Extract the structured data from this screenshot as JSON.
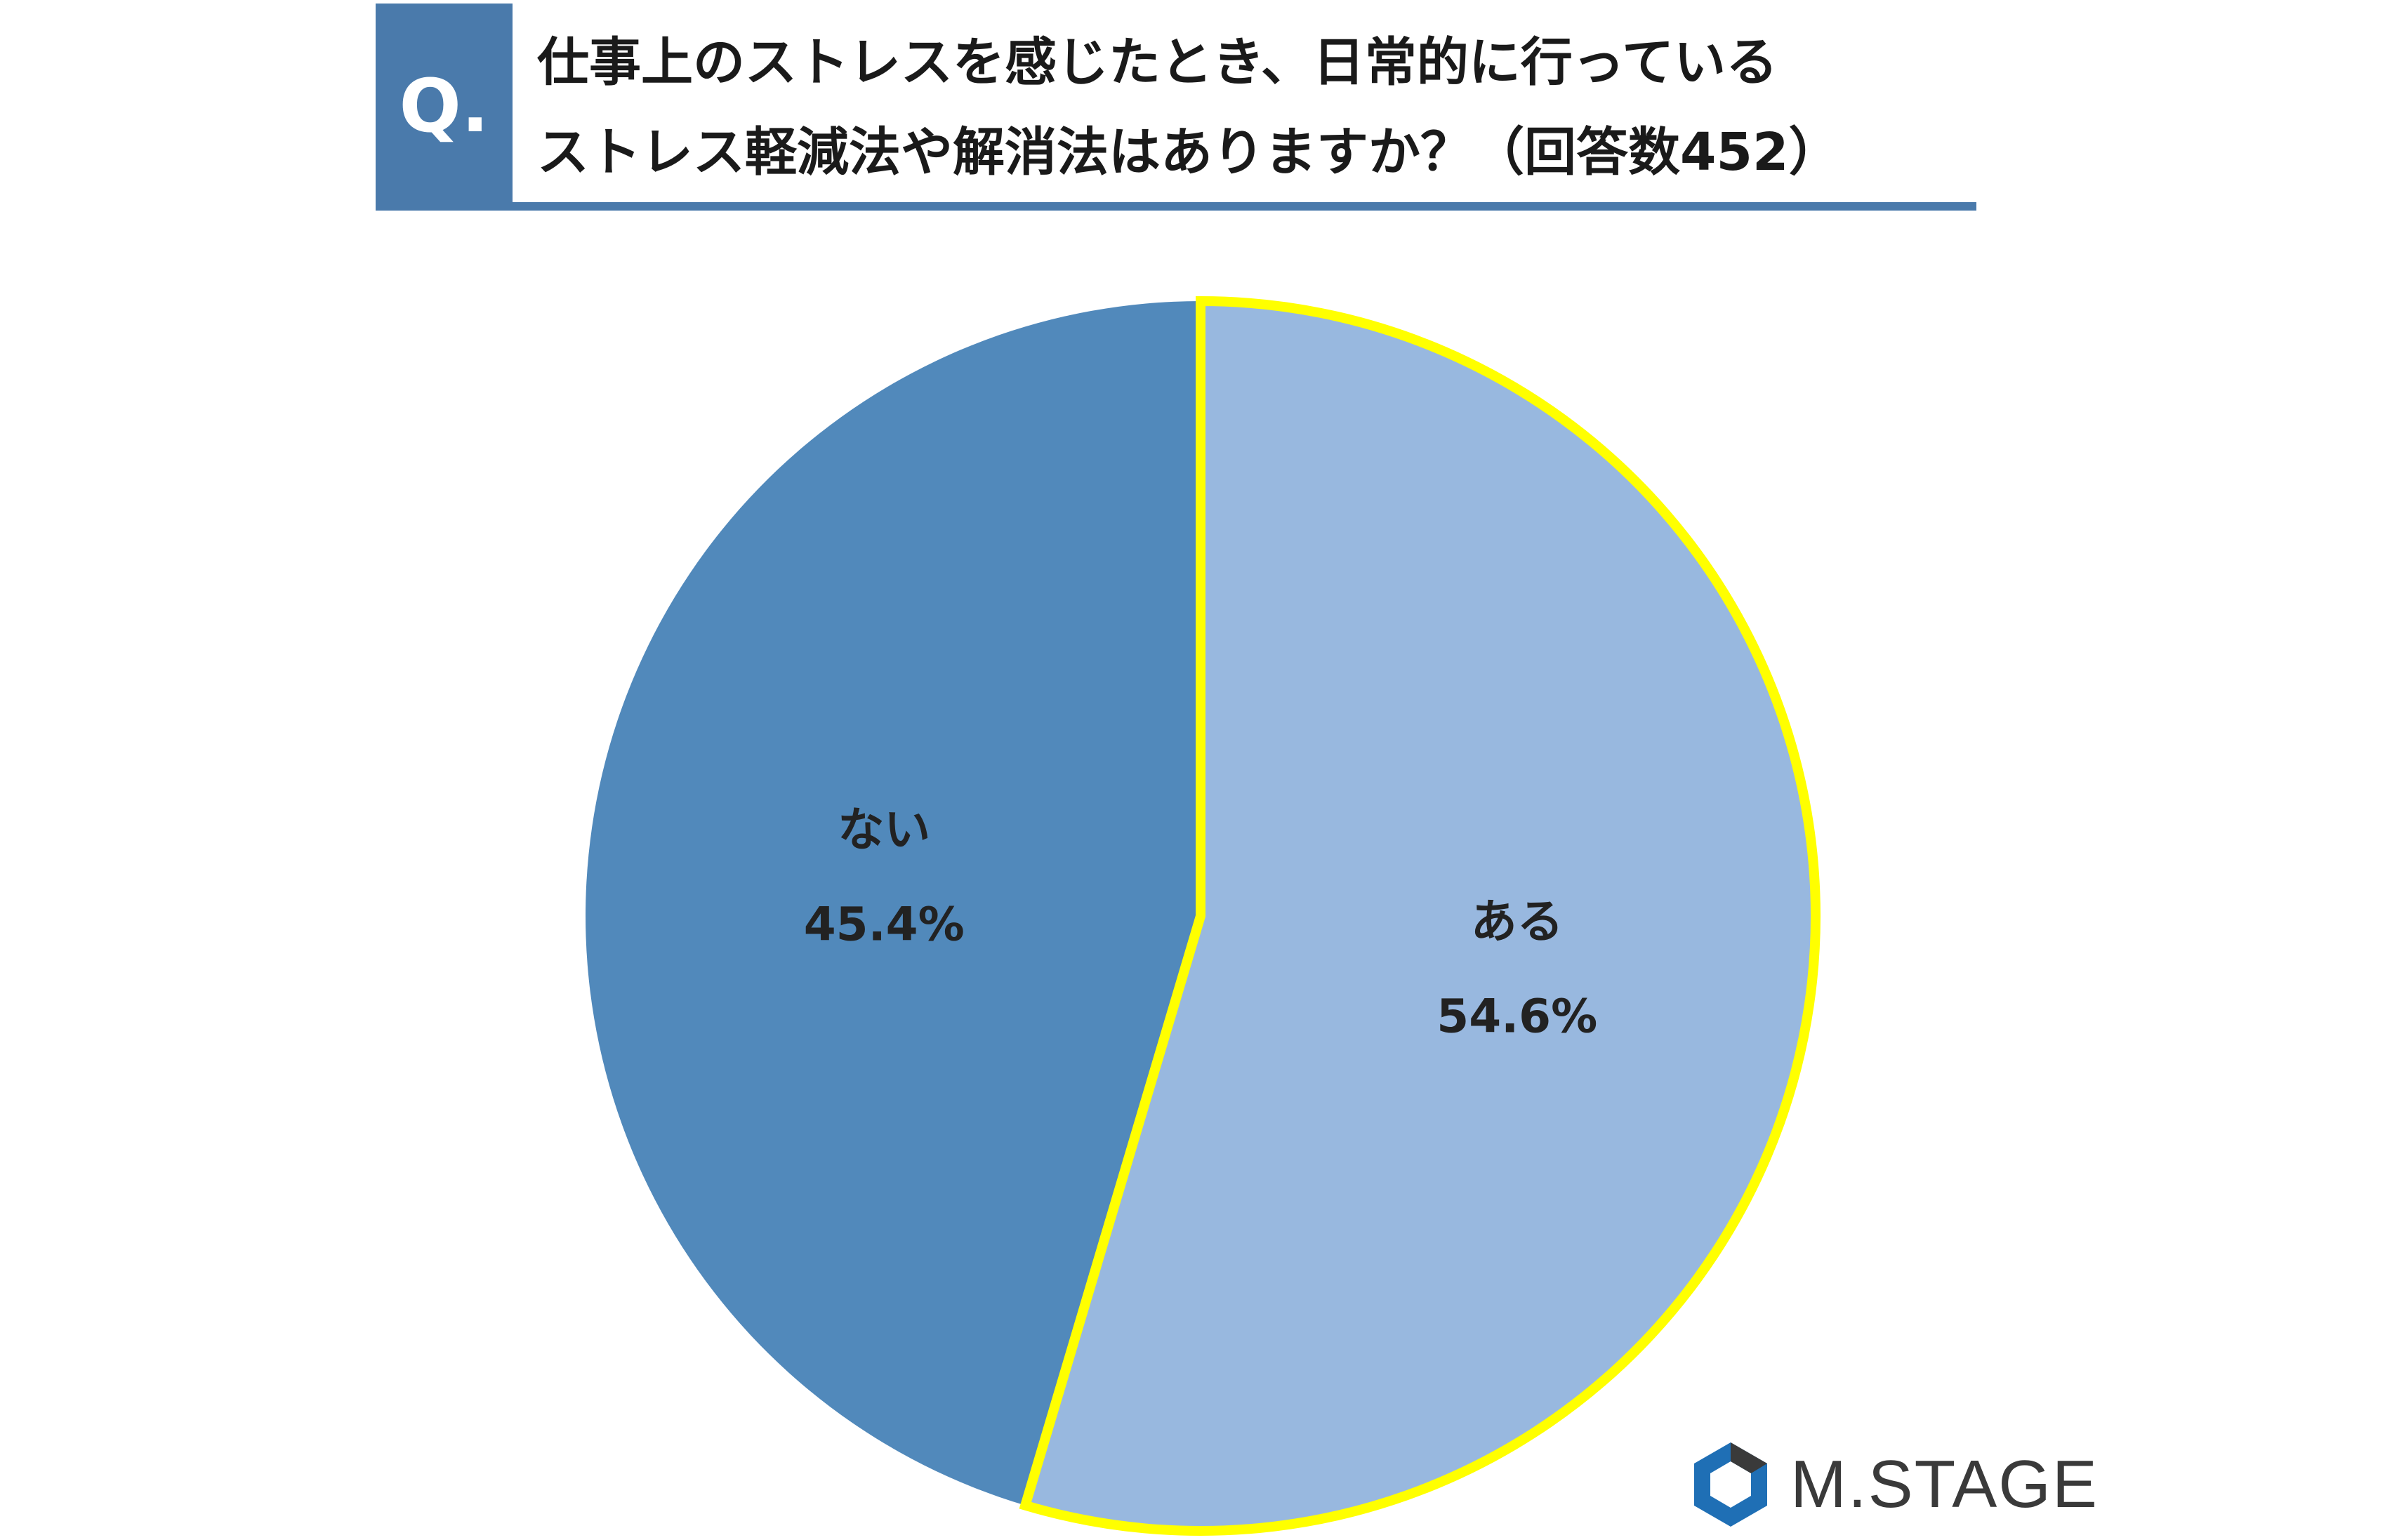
{
  "header": {
    "q_mark": "Q.",
    "question_line1": "仕事上のストレスを感じたとき、日常的に行っている",
    "question_line2": "ストレス軽減法や解消法はありますか？（回答数452）"
  },
  "chart_data": {
    "type": "pie",
    "start_angle_deg": 0,
    "direction": "clockwise",
    "slices": [
      {
        "label": "ある",
        "value": 54.6,
        "value_label": "54.6%",
        "color": "#98b8df",
        "highlight": true
      },
      {
        "label": "ない",
        "value": 45.4,
        "value_label": "45.4%",
        "color": "#5189bb",
        "highlight": false
      }
    ],
    "highlight_color": "#ffff00"
  },
  "logo": {
    "text": "M.STAGE",
    "colors": [
      "#1f6fb5",
      "#3a3a3a"
    ]
  }
}
